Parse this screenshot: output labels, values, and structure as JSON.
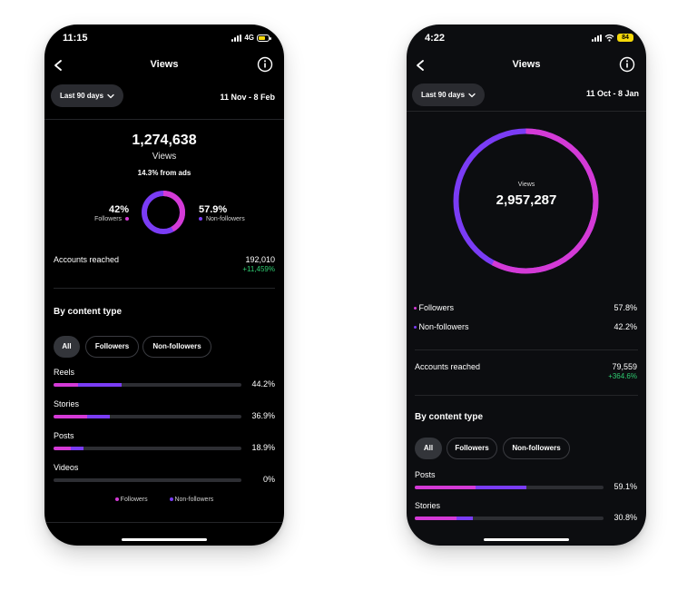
{
  "colors": {
    "followers": "#d43ad6",
    "non_followers": "#7a3cf5",
    "positive": "#2ecc71"
  },
  "screen1": {
    "status": {
      "time": "11:15",
      "network": "4G",
      "battery_icon": "battery-charging-icon"
    },
    "header": {
      "title": "Views"
    },
    "range": {
      "label": "Last 90 days",
      "dates": "11 Nov - 8 Feb"
    },
    "summary": {
      "total": "1,274,638",
      "label": "Views",
      "ads_note": "14.3% from ads"
    },
    "split": {
      "followers_pct": "42%",
      "followers_label": "Followers",
      "followers_value": 0.42,
      "non_followers_pct": "57.9%",
      "non_followers_label": "Non-followers",
      "non_followers_value": 0.579
    },
    "accounts": {
      "label": "Accounts reached",
      "value": "192,010",
      "change": "+11,459%"
    },
    "content_heading": "By content type",
    "filters": [
      "All",
      "Followers",
      "Non-followers"
    ],
    "content": [
      {
        "label": "Reels",
        "pct": "44.2%",
        "followers": 0.13,
        "non_followers": 0.23
      },
      {
        "label": "Stories",
        "pct": "36.9%",
        "followers": 0.18,
        "non_followers": 0.12
      },
      {
        "label": "Posts",
        "pct": "18.9%",
        "followers": 0.09,
        "non_followers": 0.07
      },
      {
        "label": "Videos",
        "pct": "0%",
        "followers": 0,
        "non_followers": 0
      }
    ],
    "legend": {
      "followers": "Followers",
      "non_followers": "Non-followers"
    }
  },
  "screen2": {
    "status": {
      "time": "4:22",
      "battery": "84"
    },
    "header": {
      "title": "Views"
    },
    "range": {
      "label": "Last 90 days",
      "dates": "11 Oct - 8 Jan"
    },
    "donut": {
      "label": "Views",
      "total": "2,957,287",
      "followers_value": 0.578,
      "non_followers_value": 0.422
    },
    "split": {
      "followers_label": "Followers",
      "followers_pct": "57.8%",
      "non_followers_label": "Non-followers",
      "non_followers_pct": "42.2%"
    },
    "accounts": {
      "label": "Accounts reached",
      "value": "79,559",
      "change": "+364.6%"
    },
    "content_heading": "By content type",
    "filters": [
      "All",
      "Followers",
      "Non-followers"
    ],
    "content": [
      {
        "label": "Posts",
        "pct": "59.1%",
        "followers": 0.32,
        "non_followers": 0.27
      },
      {
        "label": "Stories",
        "pct": "30.8%",
        "followers": 0.22,
        "non_followers": 0.09
      }
    ]
  }
}
